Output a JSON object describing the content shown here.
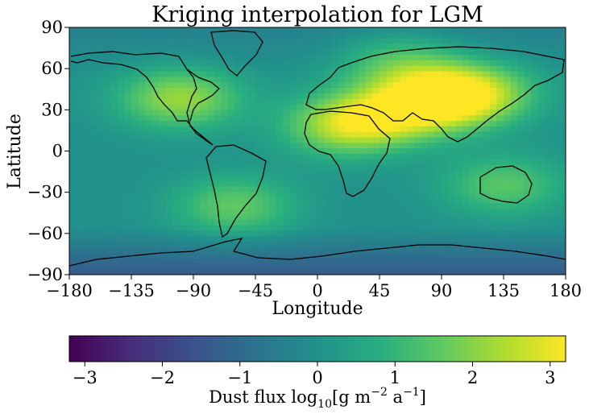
{
  "chart_data": {
    "type": "heatmap",
    "title": "Kriging interpolation for LGM",
    "xlabel": "Longitude",
    "ylabel": "Latitude",
    "xlim": [
      -180,
      180
    ],
    "ylim": [
      -90,
      90
    ],
    "x_ticks": [
      -180,
      -135,
      -90,
      -45,
      0,
      45,
      90,
      135,
      180
    ],
    "x_tick_labels": [
      "−180",
      "−135",
      "−90",
      "−45",
      "0",
      "45",
      "90",
      "135",
      "180"
    ],
    "y_ticks": [
      90,
      60,
      30,
      0,
      -30,
      -60,
      -90
    ],
    "y_tick_labels": [
      "90",
      "60",
      "30",
      "0",
      "−30",
      "−60",
      "−90"
    ],
    "colormap": "viridis",
    "colorbar": {
      "label_prefix": "Dust flux log",
      "label_sub": "10",
      "label_g": "[g m",
      "label_exp1": "−2",
      "label_a": " a",
      "label_exp2": "−1",
      "label_end": "]",
      "range": [
        -3.2,
        3.2
      ],
      "ticks": [
        -3,
        -2,
        -1,
        0,
        1,
        2,
        3
      ],
      "tick_labels": [
        "−3",
        "−2",
        "−1",
        "0",
        "1",
        "2",
        "3"
      ]
    },
    "field_hotspots": [
      {
        "lon": 20,
        "lat": 18,
        "value": 2.3
      },
      {
        "lon": 55,
        "lat": 28,
        "value": 1.8
      },
      {
        "lon": 90,
        "lat": 38,
        "value": 2.4
      },
      {
        "lon": 115,
        "lat": 42,
        "value": 1.9
      },
      {
        "lon": -100,
        "lat": 38,
        "value": 2.2
      },
      {
        "lon": -60,
        "lat": -40,
        "value": 1.6
      },
      {
        "lon": 135,
        "lat": -25,
        "value": 1.5
      },
      {
        "lon": 60,
        "lat": 65,
        "value": 1.4
      }
    ],
    "background_value": 0.0,
    "polar_low_value": -1.4
  }
}
